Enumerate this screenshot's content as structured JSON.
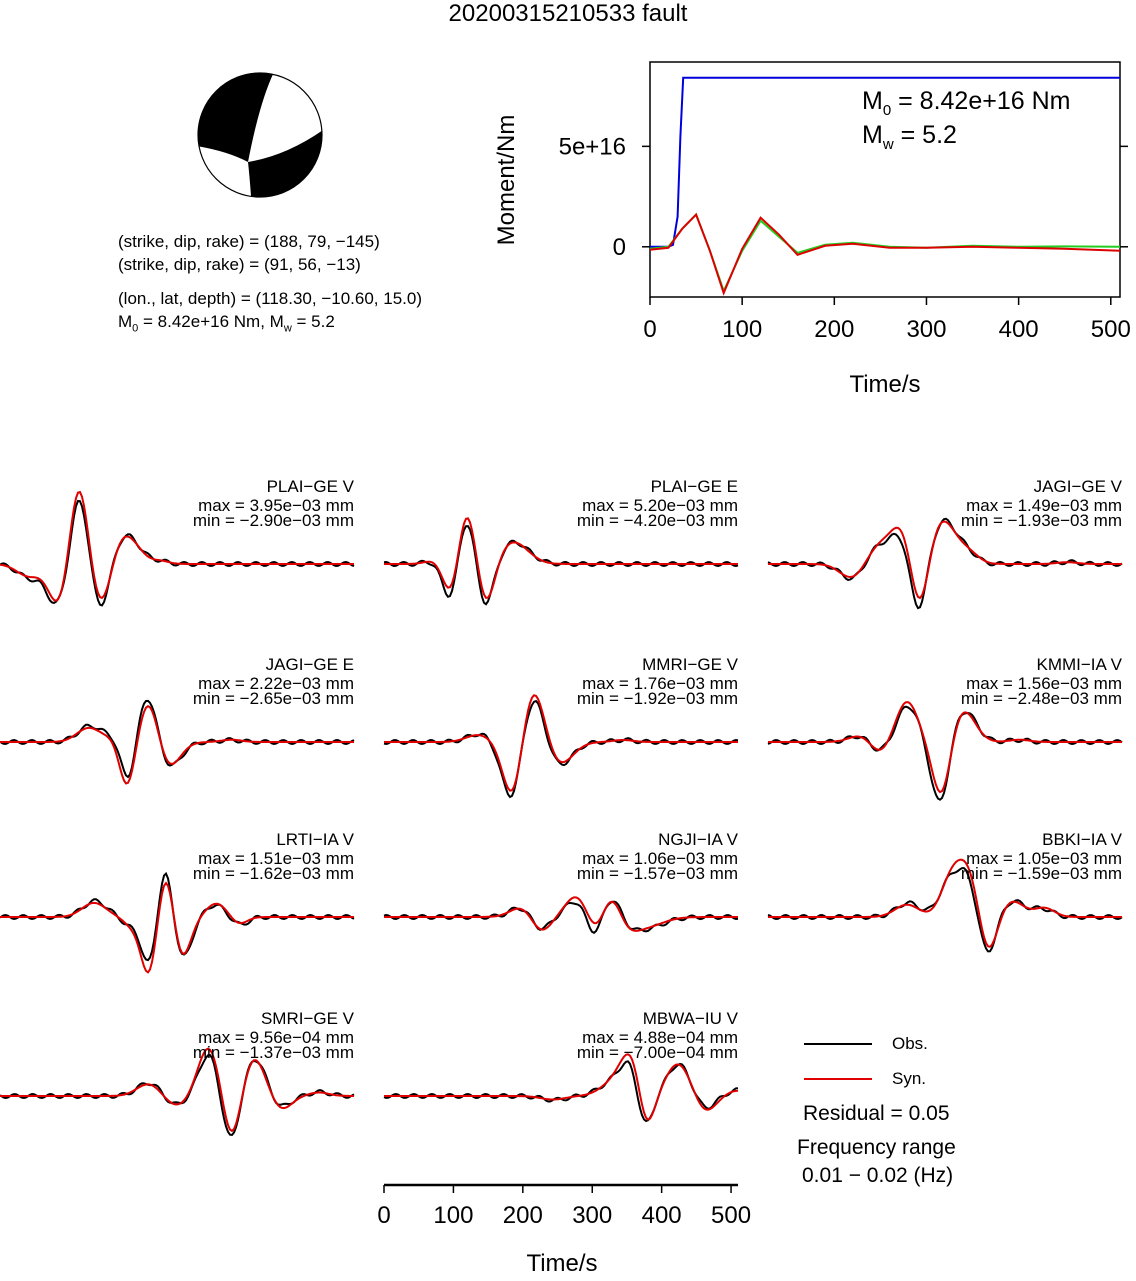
{
  "title": "20200315210533 fault",
  "solution": {
    "line1": "(strike, dip, rake) = (188, 79, −145)",
    "line2": "(strike, dip, rake) = (91, 56, −13)",
    "line3": "(lon., lat, depth) = (118.30, −10.60, 15.0)",
    "m0_label": "M",
    "m0_sub": "0",
    "m0_rest": " = 8.42e+16 Nm, M",
    "mw_sub": "w",
    "mw_rest": " = 5.2"
  },
  "colors": {
    "obs": "#000000",
    "syn": "#e00000",
    "moment": "#0000dd",
    "stf_green": "#22cc22"
  },
  "chart_data": [
    {
      "type": "line",
      "title": "",
      "xlabel": "Time/s",
      "ylabel": "Moment/Nm",
      "xlim": [
        0,
        510
      ],
      "ylim": [
        -2.5e+16,
        9.2e+16
      ],
      "xticks": [
        "0",
        "100",
        "200",
        "300",
        "400",
        "500"
      ],
      "yticks": [
        "0",
        "5e+16"
      ],
      "annotation": {
        "m0": "M",
        "m0_sub": "0",
        "m0_val": " = 8.42e+16 Nm",
        "mw": "M",
        "mw_sub": "w",
        "mw_val": " = 5.2"
      },
      "series": [
        {
          "color": "#0000dd",
          "x": [
            0,
            20,
            25,
            30,
            33,
            36,
            510
          ],
          "y": [
            0,
            0,
            1000000000000000.0,
            1.5e+16,
            5.5e+16,
            8.42e+16,
            8.42e+16
          ]
        },
        {
          "color": "#22cc22",
          "x": [
            0,
            20,
            35,
            50,
            65,
            80,
            100,
            120,
            140,
            160,
            190,
            220,
            260,
            300,
            350,
            400,
            450,
            510
          ],
          "y": [
            -1000000000000000.0,
            0,
            9000000000000000.0,
            1.6e+16,
            -2000000000000000.0,
            -2.2e+16,
            -2000000000000000.0,
            1.3e+16,
            5000000000000000.0,
            -3000000000000000.0,
            1000000000000000.0,
            2000000000000000.0,
            0,
            -500000000000000.0,
            500000000000000.0,
            0,
            200000000000000.0,
            0
          ]
        },
        {
          "color": "#dd0000",
          "x": [
            0,
            20,
            35,
            50,
            65,
            80,
            100,
            120,
            140,
            160,
            190,
            220,
            260,
            300,
            350,
            400,
            450,
            510
          ],
          "y": [
            -1500000000000000.0,
            -500000000000000.0,
            9000000000000000.0,
            1.6e+16,
            -2000000000000000.0,
            -2.3e+16,
            -1000000000000000.0,
            1.45e+16,
            6000000000000000.0,
            -4000000000000000.0,
            500000000000000.0,
            1500000000000000.0,
            -500000000000000.0,
            -500000000000000.0,
            0,
            -500000000000000.0,
            -1000000000000000.0,
            -2000000000000000.0
          ]
        }
      ]
    },
    {
      "type": "line",
      "title": "",
      "description": "waveform fits",
      "xlabel": "Time/s",
      "xlim": [
        0,
        510
      ],
      "xticks": [
        "0",
        "100",
        "200",
        "300",
        "400",
        "500"
      ],
      "traces": [
        {
          "name": "PLAI−GE V",
          "max": "max = 3.95e−03 mm",
          "min": "min = −2.90e−03 mm"
        },
        {
          "name": "PLAI−GE E",
          "max": "max = 5.20e−03 mm",
          "min": "min = −4.20e−03 mm"
        },
        {
          "name": "JAGI−GE V",
          "max": "max = 1.49e−03 mm",
          "min": "min = −1.93e−03 mm"
        },
        {
          "name": "JAGI−GE E",
          "max": "max = 2.22e−03 mm",
          "min": "min = −2.65e−03 mm"
        },
        {
          "name": "MMRI−GE V",
          "max": "max = 1.76e−03 mm",
          "min": "min = −1.92e−03 mm"
        },
        {
          "name": "KMMI−IA V",
          "max": "max = 1.56e−03 mm",
          "min": "min = −2.48e−03 mm"
        },
        {
          "name": "LRTI−IA V",
          "max": "max = 1.51e−03 mm",
          "min": "min = −1.62e−03 mm"
        },
        {
          "name": "NGJI−IA V",
          "max": "max = 1.06e−03 mm",
          "min": "min = −1.57e−03 mm"
        },
        {
          "name": "BBKI−IA V",
          "max": "max = 1.05e−03 mm",
          "min": "min = −1.59e−03 mm"
        },
        {
          "name": "SMRI−GE V",
          "max": "max = 9.56e−04 mm",
          "min": "min = −1.37e−03 mm"
        },
        {
          "name": "MBWA−IU V",
          "max": "max = 4.88e−04 mm",
          "min": "min = −7.00e−04 mm"
        }
      ],
      "legend": {
        "obs": "Obs.",
        "syn": "Syn."
      },
      "residual": "Residual = 0.05",
      "freq_title": "Frequency range",
      "freq_value": "0.01 − 0.02 (Hz)"
    }
  ]
}
